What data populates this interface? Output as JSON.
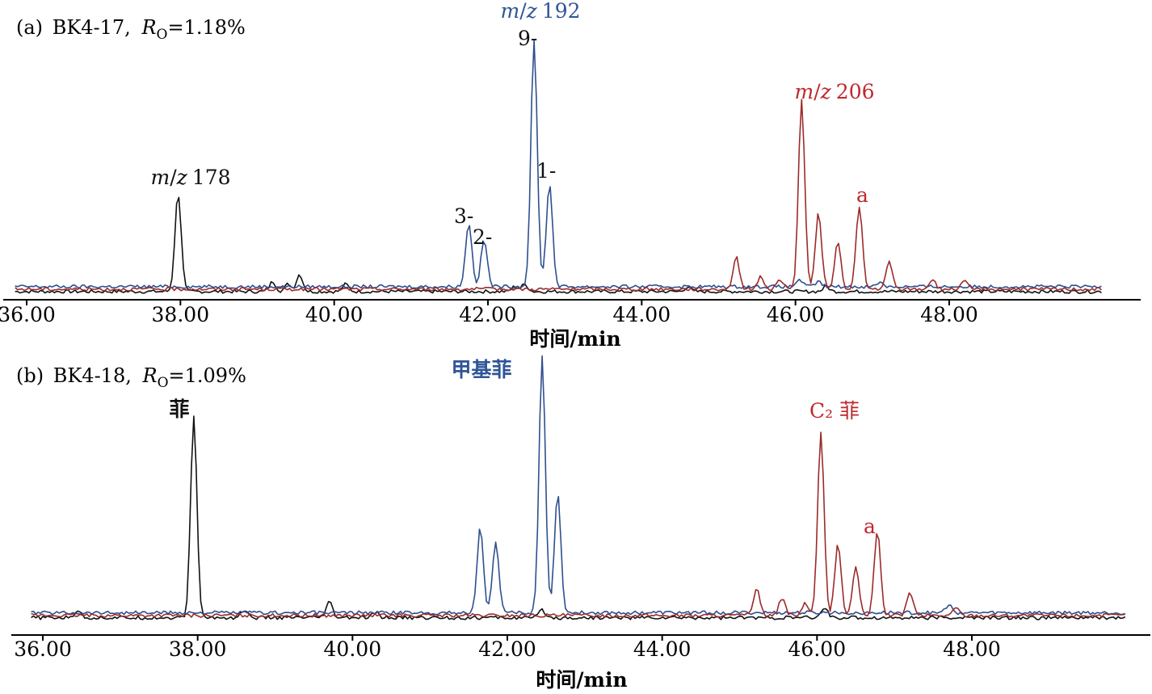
{
  "colors": {
    "black": "#111111",
    "blue": "#2f4f8f",
    "red": "#9b2b2b",
    "label_red": "#c0282d",
    "label_blue": "#2f5597"
  },
  "chart_data": [
    {
      "type": "line",
      "panel": "(a)",
      "title_prefix": "(a)",
      "sample": "BK4-17,",
      "ro_symbol": "R",
      "ro_sub": "O",
      "ro_value": "=1.18%",
      "xlabel": "时间/min",
      "xlim": [
        35.85,
        50.0
      ],
      "ylim": [
        0,
        100
      ],
      "xticks": [
        "36.00",
        "38.00",
        "40.00",
        "42.00",
        "44.00",
        "46.00",
        "48.00"
      ],
      "annotations": {
        "mz178": [
          "m",
          "/",
          "z",
          "178"
        ],
        "mz192": [
          "m",
          "/",
          "z",
          "192"
        ],
        "mz206": [
          "m",
          "/",
          "z",
          "206"
        ],
        "p9": "9-",
        "p1": "1-",
        "p3": "3-",
        "p2": "2-",
        "a": "a"
      },
      "series": [
        {
          "color": "black",
          "baseline": 1.0,
          "peaks": [
            [
              37.97,
              40
            ],
            [
              39.2,
              4
            ],
            [
              39.4,
              3
            ],
            [
              39.55,
              7
            ],
            [
              40.15,
              3
            ],
            [
              42.35,
              2
            ],
            [
              42.48,
              3
            ],
            [
              44.6,
              2
            ],
            [
              46.4,
              2
            ]
          ]
        },
        {
          "color": "blue",
          "baseline": 2.0,
          "peaks": [
            [
              41.75,
              26
            ],
            [
              41.95,
              19
            ],
            [
              42.6,
              100
            ],
            [
              42.8,
              42
            ],
            [
              46.05,
              3
            ],
            [
              46.3,
              2
            ],
            [
              47.1,
              2
            ]
          ]
        },
        {
          "color": "red",
          "baseline": 0.0,
          "peaks": [
            [
              45.23,
              13
            ],
            [
              45.55,
              5
            ],
            [
              45.8,
              4
            ],
            [
              46.08,
              77
            ],
            [
              46.3,
              31
            ],
            [
              46.55,
              19
            ],
            [
              46.83,
              34
            ],
            [
              47.22,
              11
            ],
            [
              47.78,
              4
            ],
            [
              48.2,
              3
            ]
          ]
        }
      ]
    },
    {
      "type": "line",
      "panel": "(b)",
      "title_prefix": "(b)",
      "sample": "BK4-18,",
      "ro_symbol": "R",
      "ro_sub": "O",
      "ro_value": "=1.09%",
      "xlabel": "时间/min",
      "xlim": [
        35.85,
        50.0
      ],
      "ylim": [
        0,
        100
      ],
      "xticks": [
        "36.00",
        "38.00",
        "40.00",
        "42.00",
        "44.00",
        "46.00",
        "48.00"
      ],
      "annotations": {
        "phen": "菲",
        "methyl": "甲基菲",
        "c2": "C₂ 菲",
        "a": "a"
      },
      "series": [
        {
          "color": "black",
          "baseline": 1.0,
          "peaks": [
            [
              36.45,
              3
            ],
            [
              37.95,
              78
            ],
            [
              38.6,
              3
            ],
            [
              39.7,
              6
            ],
            [
              40.3,
              2
            ],
            [
              42.45,
              3
            ],
            [
              46.1,
              4
            ]
          ]
        },
        {
          "color": "blue",
          "baseline": 2.0,
          "peaks": [
            [
              41.65,
              33
            ],
            [
              41.85,
              27
            ],
            [
              42.45,
              100
            ],
            [
              42.65,
              47
            ],
            [
              47.7,
              3
            ]
          ]
        },
        {
          "color": "red",
          "baseline": 0.0,
          "peaks": [
            [
              45.22,
              11
            ],
            [
              45.55,
              7
            ],
            [
              45.85,
              5
            ],
            [
              46.05,
              72
            ],
            [
              46.27,
              28
            ],
            [
              46.5,
              19
            ],
            [
              46.78,
              33
            ],
            [
              47.2,
              9
            ],
            [
              47.8,
              3
            ]
          ]
        }
      ]
    }
  ]
}
